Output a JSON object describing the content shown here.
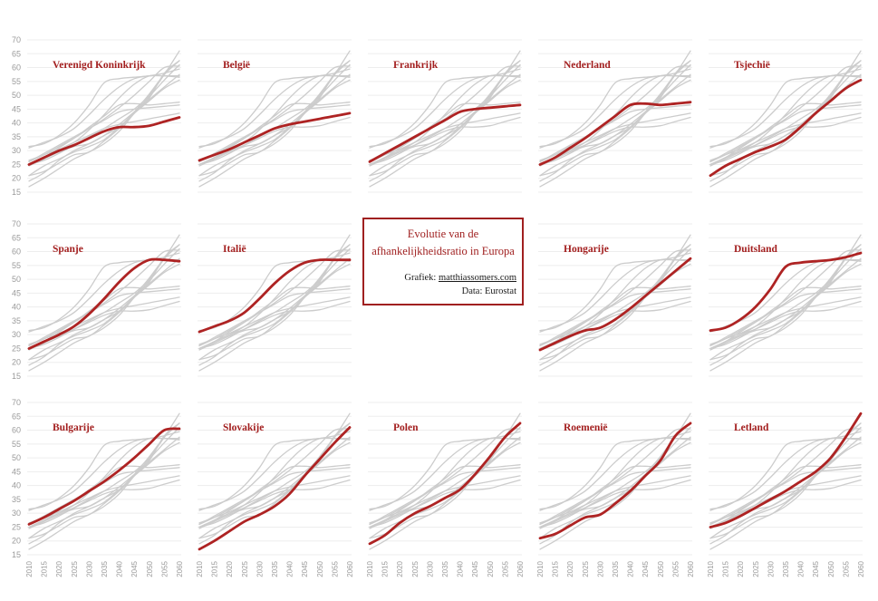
{
  "title_box": {
    "title_line1": "Evolutie van de",
    "title_line2": "afhankelijkheidsratio in Europa",
    "credit_label": "Grafiek: ",
    "credit_link": "matthiassomers.com",
    "data_source": "Data: Eurostat"
  },
  "colors": {
    "highlight_line": "#ae2323",
    "country_label": "#a31f1f",
    "muted_line": "#cccccc",
    "gridline": "#ededed",
    "tick_label": "#9a9a9a",
    "box_border": "#a02020"
  },
  "chart_data": {
    "type": "line",
    "title": "Evolutie van de afhankelijkheidsratio in Europa",
    "x": [
      2010,
      2015,
      2020,
      2025,
      2030,
      2035,
      2040,
      2045,
      2050,
      2055,
      2060
    ],
    "ylim": [
      15,
      70
    ],
    "yticks": [
      15,
      20,
      25,
      30,
      35,
      40,
      45,
      50,
      55,
      60,
      65,
      70
    ],
    "grid": "horizontal",
    "legend": "none",
    "layout_note": "small multiples: each facet shows all countries in gray, facet country highlighted in red",
    "series": [
      {
        "name": "Verenigd Koninkrijk",
        "values": [
          25,
          27.5,
          30,
          32,
          34.5,
          37,
          38.5,
          38.5,
          39,
          40.5,
          42
        ]
      },
      {
        "name": "België",
        "values": [
          26.5,
          28.5,
          30.5,
          33,
          35.5,
          38,
          39.5,
          40.5,
          41.5,
          42.5,
          43.5
        ]
      },
      {
        "name": "Frankrijk",
        "values": [
          26,
          29,
          32,
          35,
          38,
          41,
          44,
          45,
          45.5,
          46,
          46.5
        ]
      },
      {
        "name": "Nederland",
        "values": [
          25,
          27.5,
          31,
          34.5,
          38.5,
          42.5,
          46.5,
          47,
          46.5,
          47,
          47.5
        ]
      },
      {
        "name": "Tsjechië",
        "values": [
          21,
          24.5,
          27,
          29.5,
          31.5,
          34,
          38.5,
          43.5,
          48,
          52.5,
          55.5
        ]
      },
      {
        "name": "Spanje",
        "values": [
          25,
          27.5,
          30,
          33,
          37.5,
          43,
          49,
          54,
          57,
          57,
          56.5
        ]
      },
      {
        "name": "Italië",
        "values": [
          31,
          33,
          35,
          38,
          43,
          48.5,
          53,
          56,
          57,
          57,
          57
        ]
      },
      {
        "name": "Hongarije",
        "values": [
          24.5,
          27,
          29.5,
          31.5,
          32.5,
          35.5,
          39.5,
          44,
          48.5,
          53,
          57.5
        ]
      },
      {
        "name": "Duitsland",
        "values": [
          31.5,
          32.5,
          35.5,
          40,
          46.5,
          54.5,
          56,
          56.5,
          57,
          58,
          59.5
        ]
      },
      {
        "name": "Bulgarije",
        "values": [
          26,
          28.5,
          31.5,
          34.5,
          38,
          41.5,
          45.5,
          50,
          55,
          60,
          60.5
        ]
      },
      {
        "name": "Slovakije",
        "values": [
          17,
          20,
          23.5,
          27,
          29.5,
          32.5,
          37,
          43.5,
          49.5,
          55.5,
          61
        ]
      },
      {
        "name": "Polen",
        "values": [
          19,
          22,
          26.5,
          30,
          32.5,
          35.5,
          38.5,
          44,
          50.5,
          57.5,
          62.5
        ]
      },
      {
        "name": "Roemenië",
        "values": [
          21,
          22.5,
          25.5,
          28.5,
          29.5,
          33.5,
          38,
          43.5,
          49,
          58,
          62.5
        ]
      },
      {
        "name": "Letland",
        "values": [
          25,
          26.5,
          29,
          32,
          35,
          38,
          41.5,
          45,
          50,
          57.5,
          66
        ]
      }
    ],
    "facets": [
      {
        "label": "Verenigd Koninkrijk",
        "row": 0,
        "col": 0
      },
      {
        "label": "België",
        "row": 0,
        "col": 1
      },
      {
        "label": "Frankrijk",
        "row": 0,
        "col": 2
      },
      {
        "label": "Nederland",
        "row": 0,
        "col": 3
      },
      {
        "label": "Tsjechië",
        "row": 0,
        "col": 4
      },
      {
        "label": "Spanje",
        "row": 1,
        "col": 0
      },
      {
        "label": "Italië",
        "row": 1,
        "col": 1
      },
      {
        "label": "Hongarije",
        "row": 1,
        "col": 3
      },
      {
        "label": "Duitsland",
        "row": 1,
        "col": 4
      },
      {
        "label": "Bulgarije",
        "row": 2,
        "col": 0
      },
      {
        "label": "Slovakije",
        "row": 2,
        "col": 1
      },
      {
        "label": "Polen",
        "row": 2,
        "col": 2
      },
      {
        "label": "Roemenië",
        "row": 2,
        "col": 3
      },
      {
        "label": "Letland",
        "row": 2,
        "col": 4
      }
    ]
  }
}
